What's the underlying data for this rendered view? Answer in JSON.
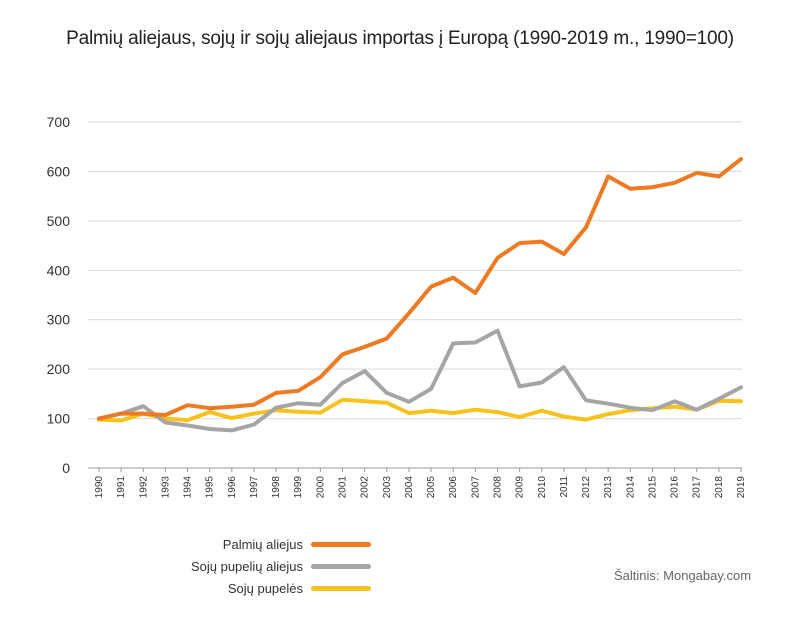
{
  "chart_data": {
    "type": "line",
    "title": "Palmių aliejaus, sojų ir sojų aliejaus importas į Europą (1990-2019 m., 1990=100)",
    "xlabel": "",
    "ylabel": "",
    "ylim": [
      0,
      700
    ],
    "yticks": [
      "0",
      "100",
      "200",
      "300",
      "400",
      "500",
      "600",
      "700"
    ],
    "grid": true,
    "legend_position": "bottom-left",
    "x": [
      "1990",
      "1991",
      "1992",
      "1993",
      "1994",
      "1995",
      "1996",
      "1997",
      "1998",
      "1999",
      "2000",
      "2001",
      "2002",
      "2003",
      "2004",
      "2005",
      "2006",
      "2007",
      "2008",
      "2009",
      "2010",
      "2011",
      "2012",
      "2013",
      "2014",
      "2015",
      "2016",
      "2017",
      "2018",
      "2019"
    ],
    "series": [
      {
        "name": "Palmių aliejus",
        "color": "#ef7a22",
        "values": [
          100,
          110,
          110,
          107,
          127,
          121,
          124,
          128,
          152,
          156,
          184,
          230,
          245,
          262,
          313,
          367,
          385,
          354,
          425,
          455,
          458,
          433,
          487,
          590,
          565,
          568,
          577,
          597,
          590,
          625
        ]
      },
      {
        "name": "Sojų pupelių aliejus",
        "color": "#a5a5a5",
        "values": [
          100,
          110,
          125,
          92,
          86,
          79,
          76,
          88,
          122,
          131,
          128,
          172,
          196,
          152,
          134,
          160,
          252,
          254,
          278,
          165,
          173,
          204,
          137,
          130,
          122,
          117,
          135,
          118,
          140,
          163
        ]
      },
      {
        "name": "Sojų pupelės",
        "color": "#f7c21d",
        "values": [
          98,
          96,
          110,
          100,
          97,
          113,
          101,
          110,
          117,
          114,
          112,
          138,
          135,
          132,
          111,
          116,
          111,
          118,
          113,
          103,
          116,
          104,
          98,
          109,
          117,
          121,
          124,
          118,
          136,
          135
        ]
      }
    ]
  },
  "source_note": "Šaltinis: Mongabay.com"
}
